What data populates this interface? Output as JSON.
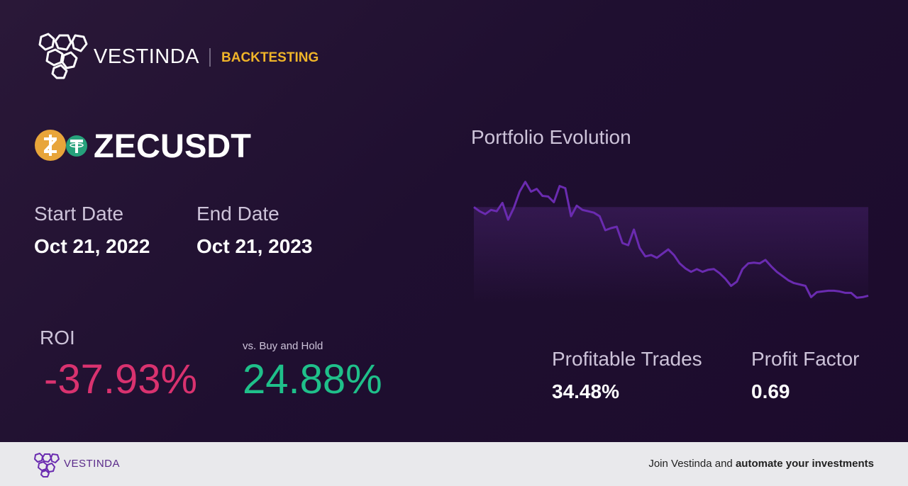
{
  "header": {
    "brand": "VESTINDA",
    "section": "BACKTESTING"
  },
  "pair": "ZECUSDT",
  "dates": {
    "start_label": "Start Date",
    "start": "Oct 21, 2022",
    "end_label": "End Date",
    "end": "Oct 21, 2023"
  },
  "roi": {
    "label": "ROI",
    "value": "-37.93%",
    "compare_label": "vs. Buy and Hold",
    "compare_value": "24.88%"
  },
  "stats": [
    {
      "label": "Profitable Trades",
      "value": "34.48%"
    },
    {
      "label": "Profit Factor",
      "value": "0.69"
    }
  ],
  "chart_data": {
    "type": "line",
    "title": "Portfolio Evolution",
    "color": "#6a2bb0",
    "ylim": [
      61,
      111
    ],
    "values": [
      100,
      98.2,
      97.0,
      98.8,
      98.2,
      101.8,
      94.6,
      99.7,
      106.6,
      110.8,
      106.6,
      107.8,
      104.8,
      104.5,
      102.1,
      109.0,
      108.1,
      96.1,
      100.6,
      98.8,
      98.2,
      97.6,
      96.1,
      90.1,
      91.0,
      91.6,
      84.6,
      83.7,
      90.4,
      82.5,
      78.9,
      79.5,
      78.3,
      80.1,
      81.9,
      79.5,
      75.9,
      73.8,
      72.3,
      73.5,
      72.3,
      73.2,
      73.5,
      71.7,
      69.3,
      66.3,
      68.1,
      73.5,
      75.9,
      76.2,
      75.9,
      77.4,
      74.7,
      72.3,
      70.5,
      68.7,
      67.5,
      66.9,
      66.3,
      61.5,
      63.6,
      63.9,
      64.2,
      64.2,
      63.9,
      63.3,
      63.3,
      61.2,
      61.5,
      62.1
    ]
  },
  "footer": {
    "brand": "VESTINDA",
    "cta_start": "Join Vestinda and ",
    "cta_bold": "automate your investments"
  }
}
